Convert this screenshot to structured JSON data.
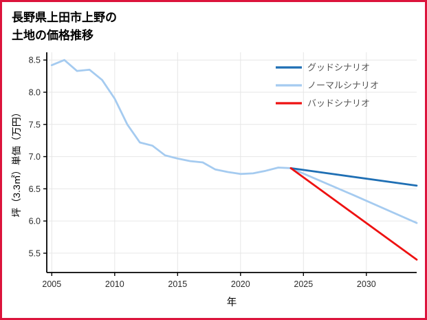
{
  "page": {
    "border_color": "#dc143c",
    "background": "#ffffff"
  },
  "title": {
    "line1": "長野県上田市上野の",
    "line2": "土地の価格推移"
  },
  "chart_data": {
    "type": "line",
    "title": "長野県上田市上野の土地の価格推移",
    "xlabel": "年",
    "ylabel": "坪（3.3㎡）単価（万円）",
    "xlim": [
      2004.6,
      2034
    ],
    "ylim": [
      5.2,
      8.62
    ],
    "xticks": [
      2005,
      2010,
      2015,
      2020,
      2025,
      2030
    ],
    "yticks": [
      5.5,
      6.0,
      6.5,
      7.0,
      7.5,
      8.0,
      8.5
    ],
    "grid": true,
    "grid_color": "#e6e6e6",
    "axis_color": "#000000",
    "tick_color": "#2b2b2b",
    "label_color": "#000000",
    "legend_text_color": "#555555",
    "legend_position": "top-right",
    "series": [
      {
        "name": "グッドシナリオ",
        "color": "#1f6fb4",
        "x": [
          2024,
          2034
        ],
        "y": [
          6.82,
          6.55
        ]
      },
      {
        "name": "ノーマルシナリオ",
        "color": "#a5cbf0",
        "x": [
          2005,
          2006,
          2007,
          2008,
          2009,
          2010,
          2011,
          2012,
          2013,
          2014,
          2015,
          2016,
          2017,
          2018,
          2019,
          2020,
          2021,
          2022,
          2023,
          2024,
          2029,
          2034
        ],
        "y": [
          8.42,
          8.5,
          8.33,
          8.35,
          8.19,
          7.9,
          7.5,
          7.22,
          7.17,
          7.02,
          6.97,
          6.93,
          6.91,
          6.8,
          6.76,
          6.73,
          6.74,
          6.78,
          6.83,
          6.82,
          6.4,
          5.97
        ]
      },
      {
        "name": "バッドシナリオ",
        "color": "#ee1111",
        "x": [
          2024,
          2034
        ],
        "y": [
          6.82,
          5.4
        ]
      }
    ]
  }
}
